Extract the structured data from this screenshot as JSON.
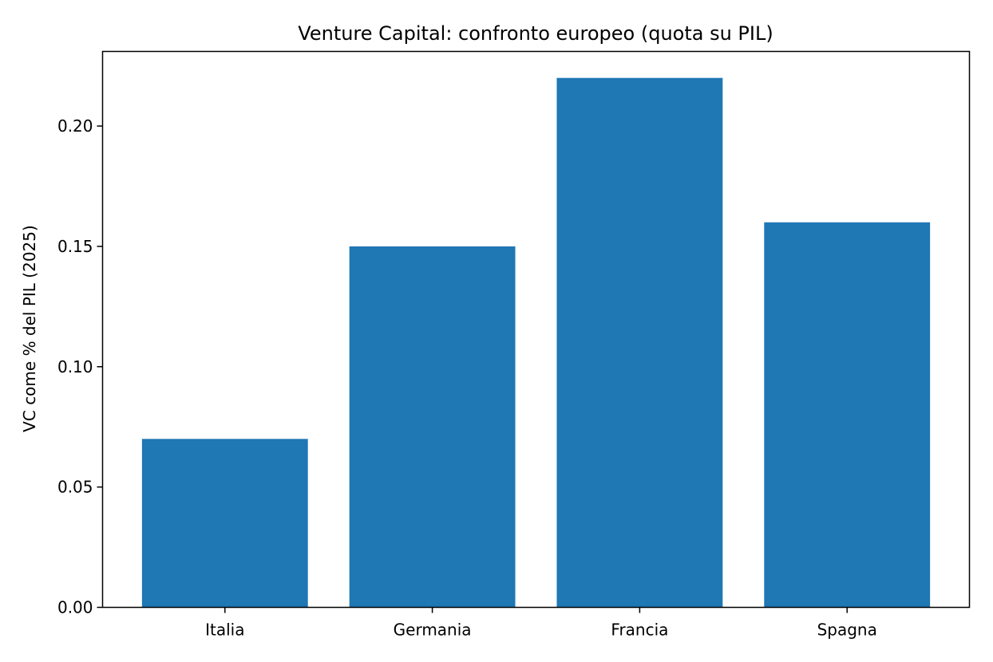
{
  "chart_data": {
    "type": "bar",
    "title": "Venture Capital: confronto europeo (quota su PIL)",
    "xlabel": "",
    "ylabel": "VC come % del PIL (2025)",
    "categories": [
      "Italia",
      "Germania",
      "Francia",
      "Spagna"
    ],
    "values": [
      0.07,
      0.15,
      0.22,
      0.16
    ],
    "ylim": [
      0,
      0.231
    ],
    "yticks": [
      0.0,
      0.05,
      0.1,
      0.15,
      0.2
    ],
    "ytick_labels": [
      "0.00",
      "0.05",
      "0.10",
      "0.15",
      "0.20"
    ],
    "grid": false,
    "bar_color": "#1f77b4"
  }
}
